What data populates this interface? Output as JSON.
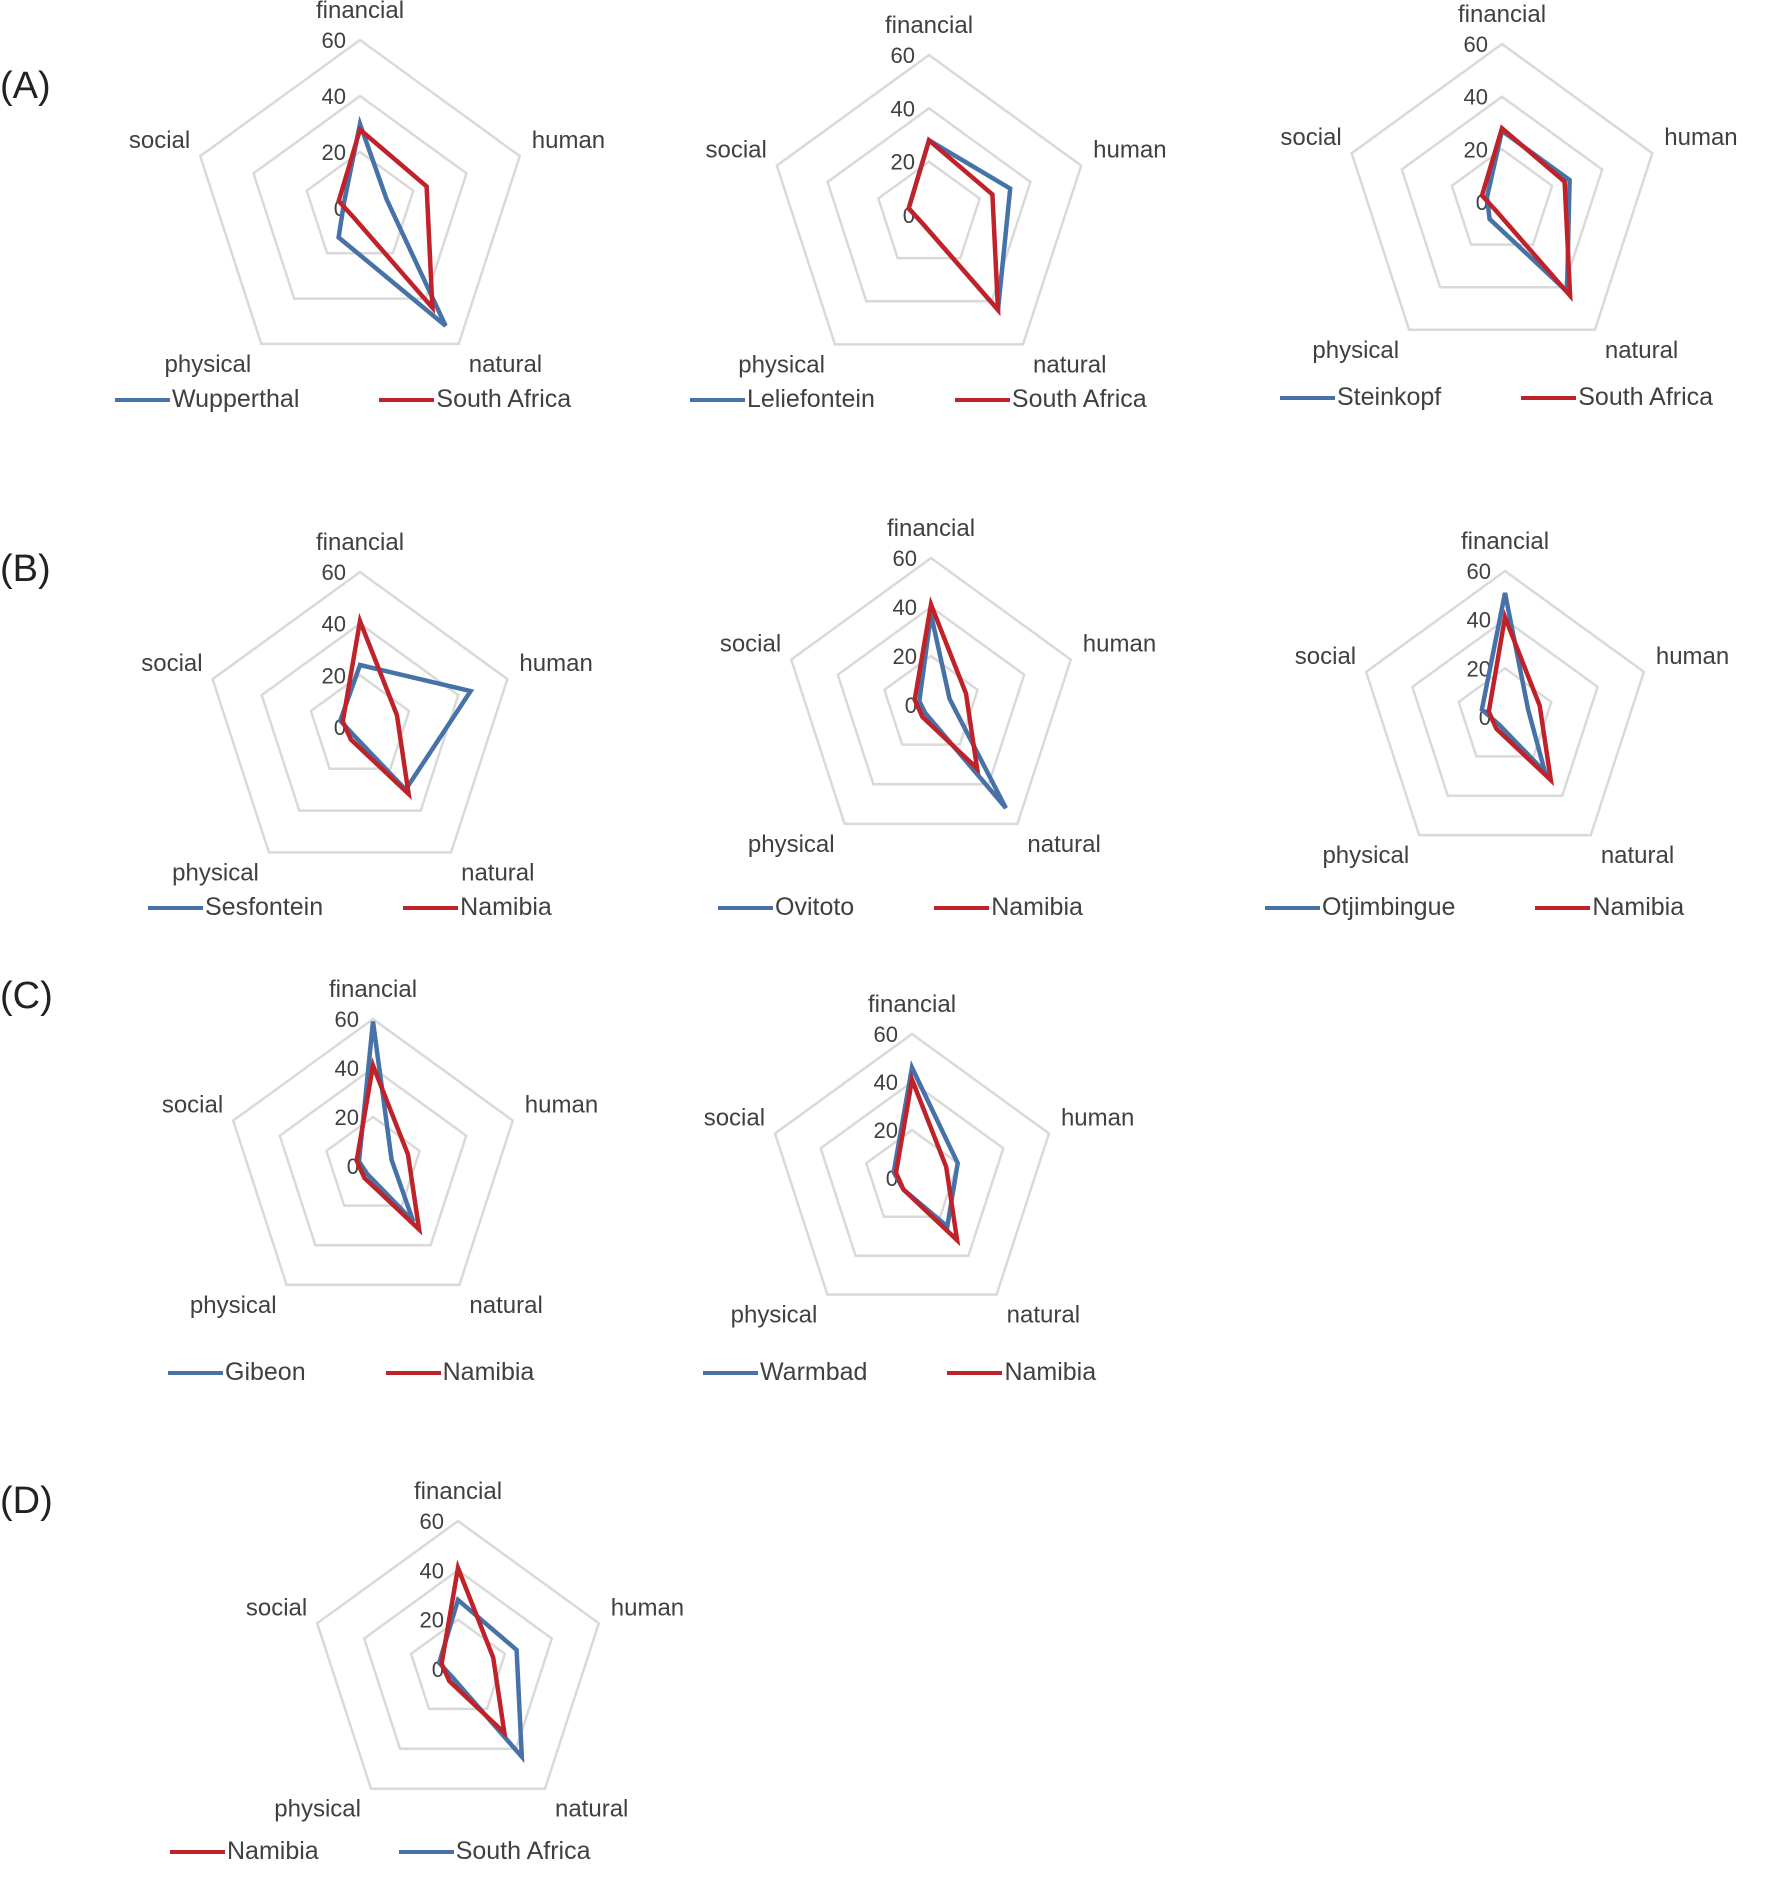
{
  "colors": {
    "blue": "#4672a8",
    "red": "#c0222a",
    "grid": "#d9d9d9"
  },
  "chart_data": [
    {
      "type": "radar",
      "group": "(A)",
      "axes": [
        "financial",
        "human",
        "natural",
        "physical",
        "social"
      ],
      "ticks": [
        "0",
        "20",
        "40",
        "60"
      ],
      "rlim": [
        0,
        60
      ],
      "legend": "bottom",
      "series": [
        {
          "name": "Wupperthal",
          "color": "blue",
          "values": [
            30,
            10,
            52,
            13,
            6
          ]
        },
        {
          "name": "South Africa",
          "color": "red",
          "values": [
            28,
            25,
            44,
            4,
            8
          ]
        }
      ]
    },
    {
      "type": "radar",
      "group": "",
      "axes": [
        "financial",
        "human",
        "natural",
        "physical",
        "social"
      ],
      "ticks": [
        "0",
        "20",
        "40",
        "60"
      ],
      "rlim": [
        0,
        60
      ],
      "legend": "bottom",
      "series": [
        {
          "name": "Leliefontein",
          "color": "blue",
          "values": [
            28,
            32,
            44,
            4,
            8
          ]
        },
        {
          "name": "South Africa",
          "color": "red",
          "values": [
            28,
            25,
            44,
            4,
            8
          ]
        }
      ]
    },
    {
      "type": "radar",
      "group": "",
      "axes": [
        "financial",
        "human",
        "natural",
        "physical",
        "social"
      ],
      "ticks": [
        "0",
        "20",
        "40",
        "60"
      ],
      "rlim": [
        0,
        60
      ],
      "legend": "bottom",
      "series": [
        {
          "name": "Steinkopf",
          "color": "blue",
          "values": [
            27,
            27,
            42,
            8,
            6
          ]
        },
        {
          "name": "South Africa",
          "color": "red",
          "values": [
            28,
            25,
            44,
            4,
            8
          ]
        }
      ]
    },
    {
      "type": "radar",
      "group": "(B)",
      "axes": [
        "financial",
        "human",
        "natural",
        "physical",
        "social"
      ],
      "ticks": [
        "0",
        "20",
        "40",
        "60"
      ],
      "rlim": [
        0,
        60
      ],
      "legend": "bottom",
      "series": [
        {
          "name": "Sesfontein",
          "color": "blue",
          "values": [
            24,
            45,
            30,
            4,
            8
          ]
        },
        {
          "name": "Namibia",
          "color": "red",
          "values": [
            41,
            15,
            32,
            6,
            7
          ]
        }
      ]
    },
    {
      "type": "radar",
      "group": "",
      "axes": [
        "financial",
        "human",
        "natural",
        "physical",
        "social"
      ],
      "ticks": [
        "0",
        "20",
        "40",
        "60"
      ],
      "rlim": [
        0,
        60
      ],
      "legend": "bottom",
      "series": [
        {
          "name": "Ovitoto",
          "color": "blue",
          "values": [
            37,
            8,
            52,
            4,
            5
          ]
        },
        {
          "name": "Namibia",
          "color": "red",
          "values": [
            41,
            15,
            32,
            6,
            7
          ]
        }
      ]
    },
    {
      "type": "radar",
      "group": "",
      "axes": [
        "financial",
        "human",
        "natural",
        "physical",
        "social"
      ],
      "ticks": [
        "0",
        "20",
        "40",
        "60"
      ],
      "rlim": [
        0,
        60
      ],
      "legend": "bottom",
      "series": [
        {
          "name": "Otjimbingue",
          "color": "blue",
          "values": [
            51,
            10,
            28,
            4,
            10
          ]
        },
        {
          "name": "Namibia",
          "color": "red",
          "values": [
            41,
            15,
            32,
            6,
            7
          ]
        }
      ]
    },
    {
      "type": "radar",
      "group": "(C)",
      "axes": [
        "financial",
        "human",
        "natural",
        "physical",
        "social"
      ],
      "ticks": [
        "0",
        "20",
        "40",
        "60"
      ],
      "rlim": [
        0,
        60
      ],
      "legend": "bottom",
      "series": [
        {
          "name": "Gibeon",
          "color": "blue",
          "values": [
            59,
            8,
            28,
            4,
            6
          ]
        },
        {
          "name": "Namibia",
          "color": "red",
          "values": [
            41,
            15,
            32,
            6,
            7
          ]
        }
      ]
    },
    {
      "type": "radar",
      "group": "",
      "axes": [
        "financial",
        "human",
        "natural",
        "physical",
        "social"
      ],
      "ticks": [
        "0",
        "20",
        "40",
        "60"
      ],
      "rlim": [
        0,
        60
      ],
      "legend": "bottom",
      "series": [
        {
          "name": "Warmbad",
          "color": "blue",
          "values": [
            46,
            20,
            25,
            6,
            8
          ]
        },
        {
          "name": "Namibia",
          "color": "red",
          "values": [
            41,
            15,
            32,
            6,
            7
          ]
        }
      ]
    },
    {
      "type": "radar",
      "group": "(D)",
      "axes": [
        "financial",
        "human",
        "natural",
        "physical",
        "social"
      ],
      "ticks": [
        "0",
        "20",
        "40",
        "60"
      ],
      "rlim": [
        0,
        60
      ],
      "legend": "bottom",
      "series": [
        {
          "name": "Namibia",
          "color": "red",
          "values": [
            41,
            15,
            32,
            6,
            7
          ]
        },
        {
          "name": "South Africa",
          "color": "blue",
          "values": [
            28,
            25,
            44,
            4,
            8
          ]
        }
      ]
    }
  ]
}
